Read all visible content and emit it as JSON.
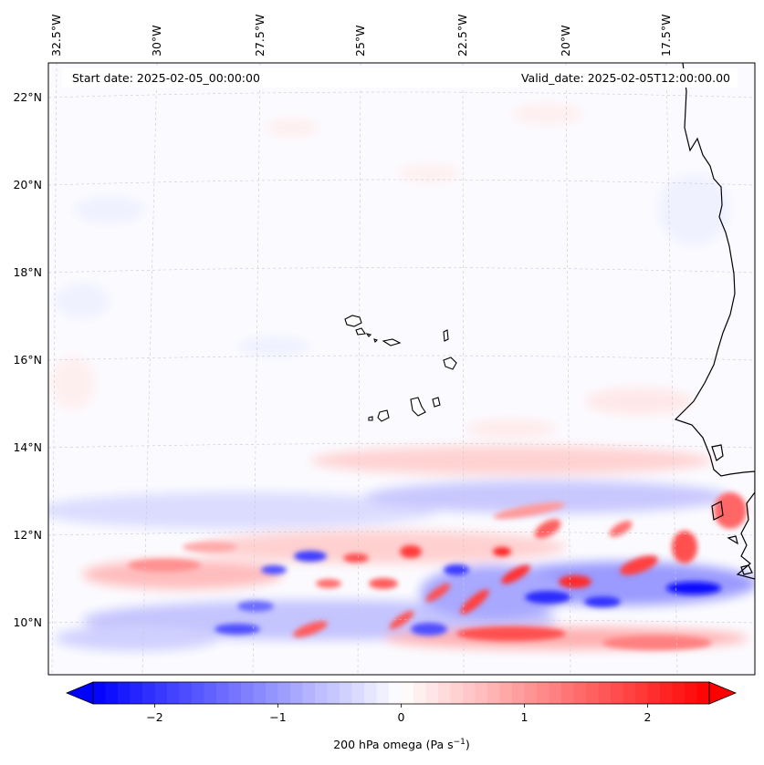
{
  "header": {
    "start_date": "Start date: 2025-02-05_00:00:00",
    "valid_date": "Valid_date: 2025-02-05T12:00:00.00"
  },
  "longitude_labels": [
    "32.5°W",
    "30°W",
    "27.5°W",
    "25°W",
    "22.5°W",
    "20°W",
    "17.5°W"
  ],
  "latitude_labels": [
    "22°N",
    "20°N",
    "18°N",
    "16°N",
    "14°N",
    "12°N",
    "10°N"
  ],
  "colorbar": {
    "label_main": "200 hPa omega (Pa s",
    "label_unit_exp": "−1",
    "label_close": ")",
    "ticks": [
      "−2",
      "−1",
      "0",
      "1",
      "2"
    ],
    "tick_values": [
      -2,
      -1,
      0,
      1,
      2
    ],
    "range": [
      -2.5,
      2.5
    ],
    "levels": 50,
    "cmap": "bwr",
    "extend": "both"
  },
  "colors": {
    "negative": "#0000ff",
    "neutral": "#ffffff",
    "positive": "#ff0000",
    "coast": "#000000",
    "grid": "#c8c8d2"
  }
}
